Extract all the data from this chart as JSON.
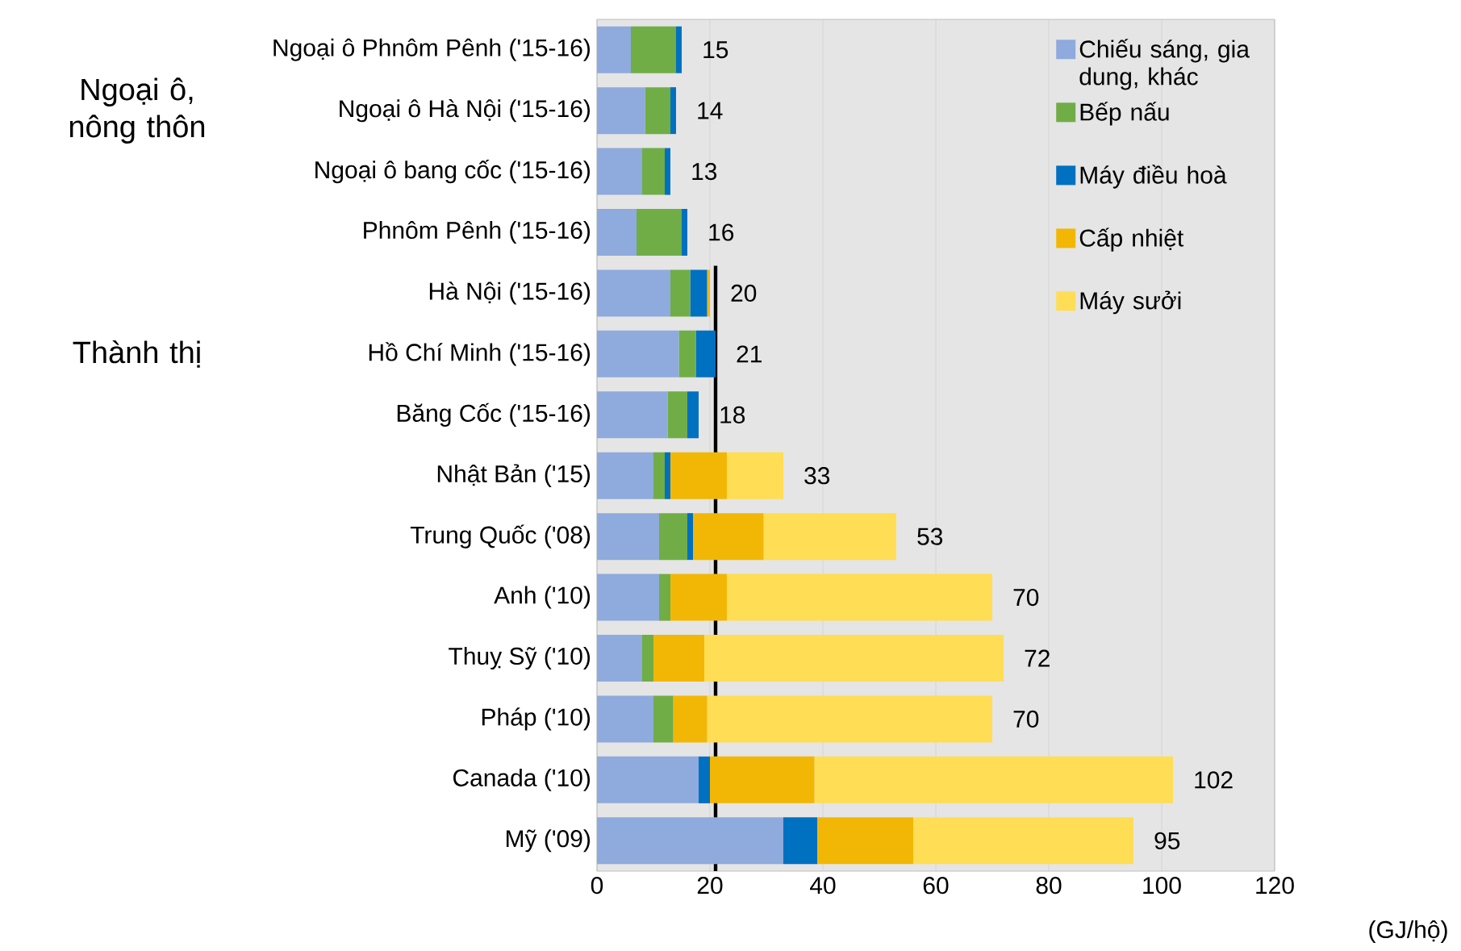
{
  "chart_data": {
    "type": "bar",
    "orientation": "horizontal",
    "stacked": true,
    "categories": [
      "Ngoại ô Phnôm Pênh ('15-16)",
      "Ngoại ô Hà Nội ('15-16)",
      "Ngoại ô bang cốc ('15-16)",
      "Phnôm Pênh ('15-16)",
      "Hà Nội ('15-16)",
      "Hồ Chí Minh ('15-16)",
      "Băng Cốc ('15-16)",
      "Nhật Bản ('15)",
      "Trung Quốc ('08)",
      "Anh ('10)",
      "Thuỵ Sỹ ('10)",
      "Pháp ('10)",
      "Canada ('10)",
      "Mỹ ('09)"
    ],
    "series": [
      {
        "name": "Chiếu sáng, gia dung, khác",
        "color": "#8faadc",
        "values": [
          6,
          8.5,
          8,
          7,
          13,
          14.5,
          12.5,
          10,
          11,
          11,
          8,
          10,
          18,
          33
        ]
      },
      {
        "name": "Bếp nấu",
        "color": "#70ad47",
        "values": [
          8,
          4.5,
          4,
          8,
          3.5,
          3,
          3.5,
          2,
          5,
          2,
          2,
          3.5,
          0,
          0
        ]
      },
      {
        "name": "Máy điều hoà",
        "color": "#0070c0",
        "values": [
          1,
          1,
          1,
          1,
          3,
          3.5,
          2,
          1,
          1,
          0,
          0,
          0,
          2,
          6
        ]
      },
      {
        "name": "Cấp nhiệt",
        "color": "#f2b705",
        "values": [
          0,
          0,
          0,
          0,
          0.5,
          0,
          0,
          10,
          12.5,
          10,
          9,
          6,
          18.5,
          17
        ]
      },
      {
        "name": "Máy sưởi",
        "color": "#ffdd55",
        "values": [
          0,
          0,
          0,
          0,
          0,
          0,
          0,
          10,
          23.5,
          47,
          53,
          50.5,
          63.5,
          39
        ]
      }
    ],
    "totals": [
      "15",
      "14",
      "13",
      "16",
      "20",
      "21",
      "18",
      "33",
      "53",
      "70",
      "72",
      "70",
      "102",
      "95"
    ],
    "xlim": [
      0,
      120
    ],
    "xticks": [
      0,
      20,
      40,
      60,
      80,
      100,
      120
    ],
    "xlabel": "(GJ/hộ)",
    "ref_lines": [
      {
        "axis": "x",
        "value": 21,
        "color": "#000000"
      }
    ],
    "annotations": [
      "Ngoại ô, nông thôn",
      "Thành thị"
    ],
    "grid": "x",
    "legend": "top right"
  }
}
